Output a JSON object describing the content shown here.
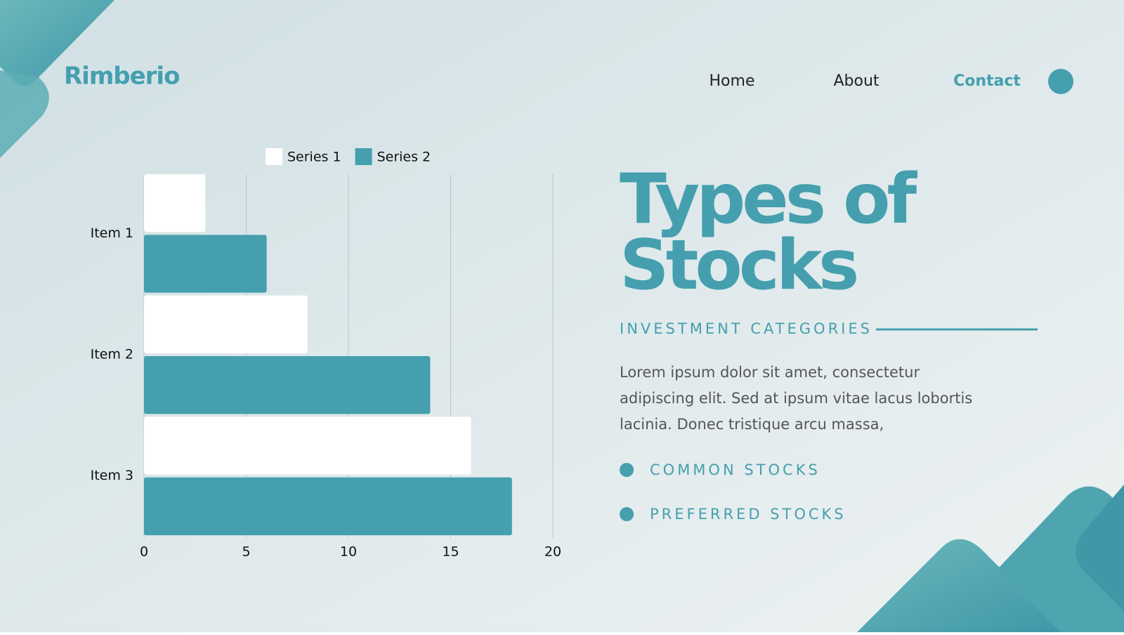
{
  "brand": "Rimberio",
  "nav": [
    "Home",
    "About",
    "Contact"
  ],
  "title": [
    "Types of",
    "Stocks"
  ],
  "subtitle": "INVESTMENT CATEGORIES",
  "paragraph": [
    "Lorem ipsum dolor sit amet, consectetur",
    "adipiscing elit. Sed at ipsum vitae lacus lobortis",
    "lacinia. Donec tristique arcu massa,"
  ],
  "bullets": [
    "COMMON STOCKS",
    "PREFERRED STOCKS"
  ],
  "chart_data": {
    "type": "hbar",
    "categories": [
      "Item 1",
      "Item 2",
      "Item 3"
    ],
    "series": [
      {
        "name": "Series 1",
        "color": "#ffffff",
        "values": [
          3,
          8,
          16
        ]
      },
      {
        "name": "Series 2",
        "color": "#459fae",
        "values": [
          6,
          14,
          18
        ]
      }
    ],
    "xlim": [
      0,
      20
    ],
    "xticks": [
      0,
      5,
      10,
      15,
      20
    ],
    "grid": true,
    "legend": "top"
  }
}
